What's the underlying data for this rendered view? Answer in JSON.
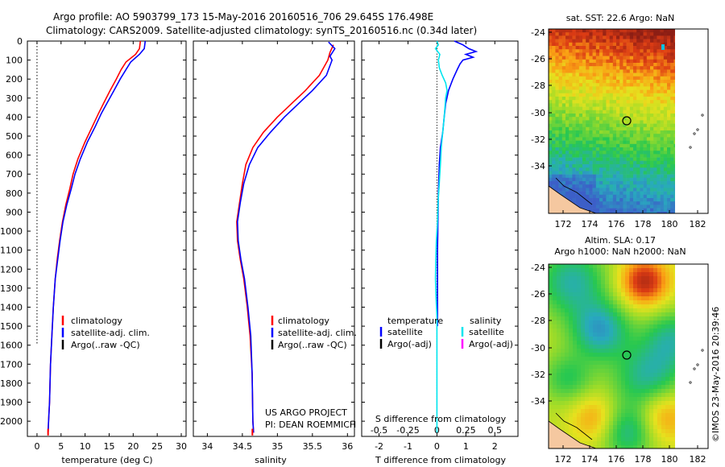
{
  "header": {
    "line1": "Argo profile: AO 5903799_173 15-May-2016 20160516_706 29.645S 176.498E",
    "line2": "Climatology: CARS2009. Satellite-adjusted climatology: synTS_20160516.nc (0.34d later)"
  },
  "side_credit": "©IMOS 23-May-2016 20:39:46",
  "colors": {
    "climatology": "#ff0000",
    "satellite": "#0000ff",
    "argo": "#000000",
    "sal_satellite": "#00e5ee",
    "argo_adj": "#ff00ff"
  },
  "chart_data": [
    {
      "type": "line",
      "xlabel": "temperature (deg C)",
      "xlim": [
        -2,
        31
      ],
      "xticks": [
        0,
        5,
        10,
        15,
        20,
        25,
        30
      ],
      "ylim": [
        0,
        2080
      ],
      "yticks": [
        0,
        100,
        200,
        300,
        400,
        500,
        600,
        700,
        800,
        900,
        1000,
        1100,
        1200,
        1300,
        1400,
        1500,
        1600,
        1700,
        1800,
        1900,
        2000
      ],
      "dotted_zero": {
        "x": 0,
        "y_end": 1600
      },
      "legend": {
        "position": "lower-center",
        "entries": [
          "climatology",
          "satellite-adj. clim.",
          "Argo(..raw -QC)"
        ]
      },
      "series": [
        {
          "name": "climatology",
          "color": "#ff0000",
          "points": [
            [
              21.5,
              0
            ],
            [
              21.3,
              40
            ],
            [
              20.5,
              70
            ],
            [
              18.5,
              110
            ],
            [
              17.5,
              150
            ],
            [
              16.5,
              200
            ],
            [
              15.2,
              260
            ],
            [
              14,
              320
            ],
            [
              12.8,
              380
            ],
            [
              11.5,
              450
            ],
            [
              10,
              530
            ],
            [
              8.5,
              620
            ],
            [
              7.5,
              700
            ],
            [
              6.8,
              780
            ],
            [
              6,
              860
            ],
            [
              5.3,
              950
            ],
            [
              4.7,
              1050
            ],
            [
              4.2,
              1150
            ],
            [
              3.8,
              1250
            ],
            [
              3.4,
              1400
            ],
            [
              3.1,
              1550
            ],
            [
              2.8,
              1700
            ],
            [
              2.6,
              1900
            ],
            [
              2.4,
              2000
            ],
            [
              2.3,
              2060
            ]
          ]
        },
        {
          "name": "satellite-adj. clim.",
          "color": "#0000ff",
          "points": [
            [
              22.5,
              0
            ],
            [
              22.3,
              40
            ],
            [
              21.3,
              70
            ],
            [
              19.5,
              110
            ],
            [
              18.5,
              150
            ],
            [
              17.3,
              200
            ],
            [
              16,
              260
            ],
            [
              14.7,
              320
            ],
            [
              13.4,
              380
            ],
            [
              12.1,
              450
            ],
            [
              10.5,
              530
            ],
            [
              9,
              620
            ],
            [
              7.9,
              700
            ],
            [
              7.1,
              780
            ],
            [
              6.2,
              860
            ],
            [
              5.4,
              950
            ],
            [
              4.8,
              1050
            ],
            [
              4.3,
              1150
            ],
            [
              3.8,
              1250
            ],
            [
              3.4,
              1400
            ],
            [
              3.1,
              1550
            ],
            [
              2.8,
              1700
            ],
            [
              2.6,
              1900
            ],
            [
              2.4,
              2000
            ],
            [
              2.3,
              2060
            ]
          ]
        }
      ]
    },
    {
      "type": "line",
      "xlabel": "salinity",
      "xlim": [
        33.8,
        36.1
      ],
      "xticks": [
        34,
        34.5,
        35,
        35.5,
        36
      ],
      "legend": {
        "position": "lower-center",
        "entries": [
          "climatology",
          "satellite-adj. clim.",
          "Argo(..raw -QC)"
        ]
      },
      "annotation": [
        "US ARGO PROJECT",
        "PI: DEAN ROEMMICH"
      ],
      "series": [
        {
          "name": "climatology",
          "color": "#ff0000",
          "points": [
            [
              35.8,
              20
            ],
            [
              35.75,
              60
            ],
            [
              35.72,
              100
            ],
            [
              35.6,
              180
            ],
            [
              35.4,
              260
            ],
            [
              35.2,
              330
            ],
            [
              35,
              400
            ],
            [
              34.8,
              480
            ],
            [
              34.65,
              560
            ],
            [
              34.55,
              650
            ],
            [
              34.5,
              750
            ],
            [
              34.46,
              850
            ],
            [
              34.42,
              950
            ],
            [
              34.43,
              1050
            ],
            [
              34.47,
              1150
            ],
            [
              34.52,
              1250
            ],
            [
              34.57,
              1400
            ],
            [
              34.61,
              1550
            ],
            [
              34.64,
              1750
            ],
            [
              34.65,
              2000
            ],
            [
              34.66,
              2060
            ]
          ]
        },
        {
          "name": "satellite-adj. clim.",
          "color": "#0000ff",
          "points": [
            [
              35.73,
              5
            ],
            [
              35.82,
              40
            ],
            [
              35.75,
              80
            ],
            [
              35.78,
              100
            ],
            [
              35.7,
              180
            ],
            [
              35.5,
              260
            ],
            [
              35.3,
              330
            ],
            [
              35.1,
              400
            ],
            [
              34.9,
              480
            ],
            [
              34.72,
              560
            ],
            [
              34.6,
              650
            ],
            [
              34.52,
              750
            ],
            [
              34.47,
              850
            ],
            [
              34.43,
              950
            ],
            [
              34.44,
              1050
            ],
            [
              34.48,
              1150
            ],
            [
              34.53,
              1250
            ],
            [
              34.58,
              1400
            ],
            [
              34.62,
              1550
            ],
            [
              34.64,
              1750
            ],
            [
              34.65,
              2000
            ],
            [
              34.66,
              2060
            ]
          ]
        }
      ]
    },
    {
      "type": "line",
      "xlabel": "T difference from climatology",
      "xlabel_top": "S difference from climatology",
      "xlim": [
        -2.6,
        2.8
      ],
      "xticks_bottom": [
        -2,
        -1,
        0,
        1,
        2
      ],
      "xticks_top": [
        -0.5,
        -0.25,
        0,
        0.25,
        0.5
      ],
      "legend": {
        "position": "lower-center",
        "columns": [
          {
            "title": "temperature",
            "entries": [
              "satellite",
              "Argo(-adj)"
            ]
          },
          {
            "title": "salinity",
            "entries": [
              "satellite",
              "Argo(-adj)"
            ]
          }
        ]
      },
      "series": [
        {
          "name": "satellite",
          "color": "#0000ff",
          "points": [
            [
              0.6,
              0
            ],
            [
              0.75,
              10
            ],
            [
              0.9,
              20
            ],
            [
              1.1,
              40
            ],
            [
              1.35,
              55
            ],
            [
              1.0,
              70
            ],
            [
              1.25,
              85
            ],
            [
              0.9,
              100
            ],
            [
              0.8,
              120
            ],
            [
              0.7,
              150
            ],
            [
              0.55,
              200
            ],
            [
              0.4,
              260
            ],
            [
              0.3,
              330
            ],
            [
              0.25,
              400
            ],
            [
              0.2,
              480
            ],
            [
              0.12,
              560
            ],
            [
              0.08,
              650
            ],
            [
              0.05,
              800
            ],
            [
              0.03,
              1000
            ],
            [
              0.02,
              1100
            ],
            [
              0.02,
              1300
            ],
            [
              0.02,
              1500
            ]
          ]
        },
        {
          "name": "satellite",
          "color": "#00e5ee",
          "points": [
            [
              0,
              0
            ],
            [
              0.05,
              20
            ],
            [
              -0.05,
              40
            ],
            [
              0.1,
              70
            ],
            [
              0.05,
              100
            ],
            [
              0.08,
              140
            ],
            [
              0.18,
              180
            ],
            [
              0.3,
              220
            ],
            [
              0.35,
              260
            ],
            [
              0.3,
              300
            ],
            [
              0.28,
              340
            ],
            [
              0.25,
              400
            ],
            [
              0.2,
              480
            ],
            [
              0.15,
              560
            ],
            [
              0.12,
              650
            ],
            [
              0.08,
              750
            ],
            [
              0.04,
              850
            ],
            [
              0.02,
              950
            ],
            [
              -0.02,
              1050
            ],
            [
              -0.04,
              1150
            ],
            [
              -0.05,
              1250
            ],
            [
              -0.03,
              1350
            ],
            [
              0,
              1450
            ],
            [
              0,
              2060
            ]
          ]
        }
      ]
    }
  ],
  "sst_map": {
    "title": "sat. SST: 22.6  Argo: NaN",
    "xticks": [
      "172",
      "174",
      "176",
      "178",
      "180",
      "182"
    ],
    "yticks": [
      "-24",
      "-26",
      "-28",
      "-30",
      "-32",
      "-34"
    ]
  },
  "sla_map": {
    "title_line1": "Altim. SLA: 0.17",
    "title_line2": "Argo h1000: NaN h2000: NaN",
    "xticks": [
      "172",
      "174",
      "176",
      "178",
      "180",
      "182"
    ],
    "yticks": [
      "-24",
      "-26",
      "-28",
      "-30",
      "-32",
      "-34"
    ]
  }
}
